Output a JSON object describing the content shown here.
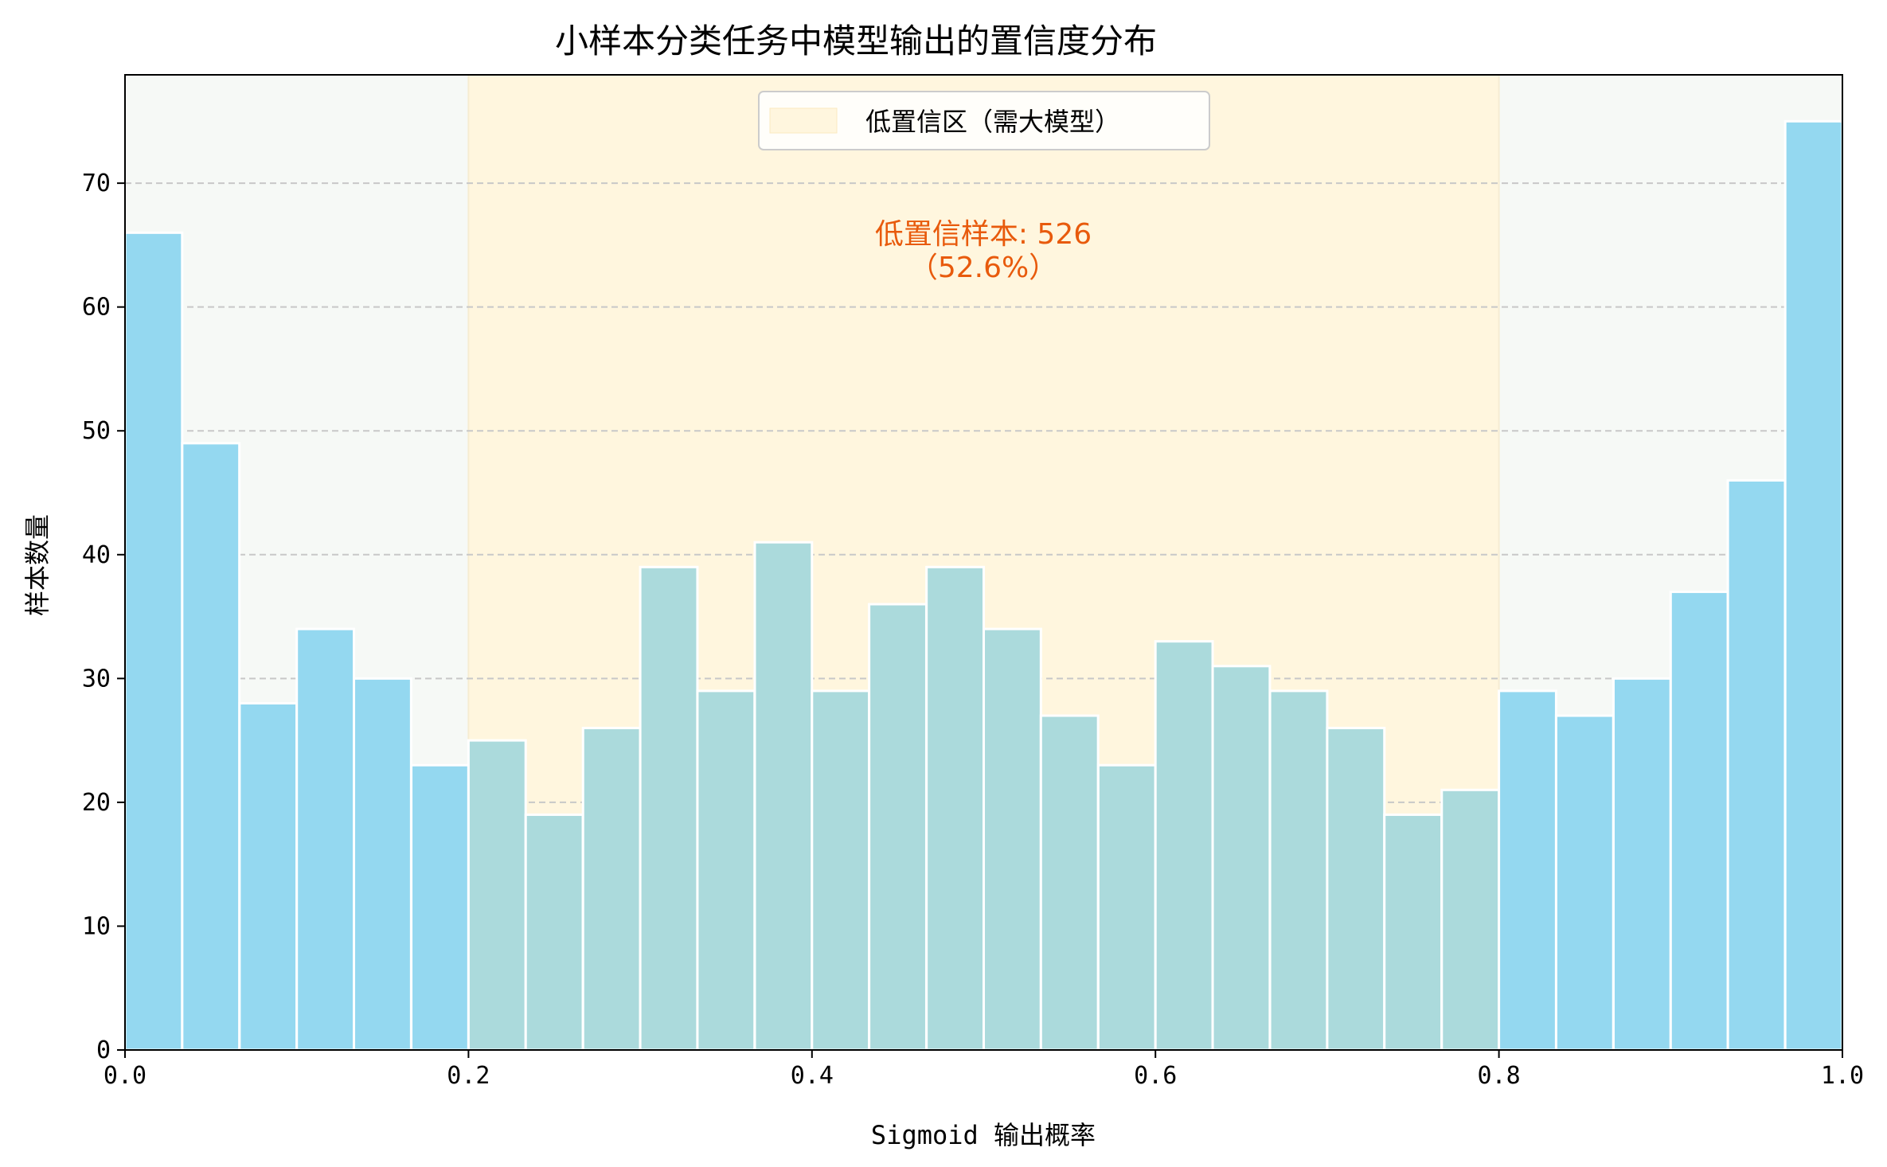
{
  "chart_data": {
    "type": "bar",
    "title": "小样本分类任务中模型输出的置信度分布",
    "xlabel": "Sigmoid 输出概率",
    "ylabel": "样本数量",
    "xlim": [
      0.0,
      1.0
    ],
    "ylim": [
      0,
      78.75
    ],
    "x_ticks": [
      "0.0",
      "0.2",
      "0.4",
      "0.6",
      "0.8",
      "1.0"
    ],
    "y_ticks": [
      "0",
      "10",
      "20",
      "30",
      "40",
      "50",
      "60",
      "70"
    ],
    "grid": "y-dashed",
    "bin_width": 0.0333,
    "bin_starts": [
      0.0,
      0.0333,
      0.0667,
      0.1,
      0.1333,
      0.1667,
      0.2,
      0.2333,
      0.2667,
      0.3,
      0.3333,
      0.3667,
      0.4,
      0.4333,
      0.4667,
      0.5,
      0.5333,
      0.5667,
      0.6,
      0.6333,
      0.6667,
      0.7,
      0.7333,
      0.7667,
      0.8,
      0.8333,
      0.8667,
      0.9,
      0.9333,
      0.9667
    ],
    "values": [
      66,
      49,
      28,
      34,
      30,
      23,
      25,
      19,
      26,
      39,
      29,
      41,
      29,
      36,
      39,
      34,
      27,
      23,
      33,
      31,
      29,
      26,
      19,
      21,
      29,
      27,
      30,
      37,
      46,
      75
    ],
    "highlight_region": {
      "x_range": [
        0.2,
        0.8
      ],
      "label": "低置信区（需大模型）"
    },
    "legend": {
      "position": "top-center",
      "entries": [
        "低置信区（需大模型）"
      ]
    },
    "annotation": {
      "line1": "低置信样本: 526",
      "line2": "（52.6%）",
      "x": 0.5,
      "y": 64.5
    },
    "colors": {
      "bar": "#94d8f0",
      "bar_in_region": "#abdadc",
      "bar_edge": "#ffffff",
      "region_fill": "#fff6de",
      "outside_fill": "#f6f9f6",
      "annotation": "#e85a0c",
      "grid": "#c8c8c8"
    }
  }
}
